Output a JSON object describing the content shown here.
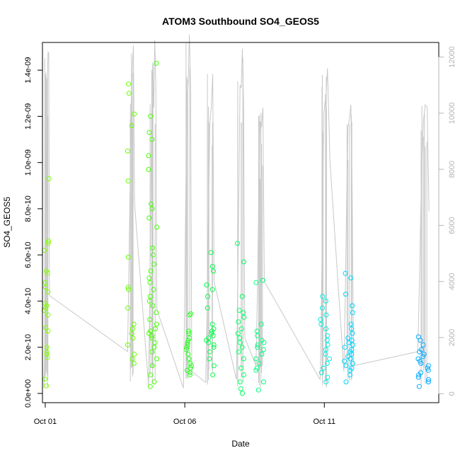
{
  "chart_data": {
    "type": "scatter",
    "title": "ATOM3 Southbound SO4_GEOS5",
    "xlabel": "Date",
    "ylabel": "SO4_GEOS5",
    "x_axis": {
      "ticks": [
        "Oct 01",
        "Oct 06",
        "Oct 11"
      ],
      "tick_values": [
        1.0,
        6.0,
        11.0
      ],
      "range": [
        0.9,
        15.1
      ]
    },
    "y_axis_left": {
      "ticks": [
        "0.0e+00",
        "2.0e-10",
        "4.0e-10",
        "6.0e-10",
        "8.0e-10",
        "1.0e-09",
        "1.2e-09",
        "1.4e-09"
      ],
      "tick_values": [
        0,
        2e-10,
        4e-10,
        6e-10,
        8e-10,
        1e-09,
        1.2e-09,
        1.4e-09
      ],
      "range": [
        -4e-11,
        1.52e-09
      ]
    },
    "y_axis_right": {
      "ticks": [
        "0",
        "2000",
        "4000",
        "6000",
        "8000",
        "10000",
        "12000"
      ],
      "tick_values": [
        0,
        2000,
        4000,
        6000,
        8000,
        10000,
        12000
      ],
      "range": [
        -320,
        12520
      ],
      "description": "altitude trace (gray line)"
    },
    "grid": false,
    "colors": {
      "trace": "#c8c8c8",
      "right_axis": "#b5b5b5",
      "palette_by_day": [
        "#80ff00",
        "#55ff00",
        "#30ff10",
        "#00ff40",
        "#00ff55",
        "#00ff70",
        "#00ff90",
        "#00eedd",
        "#00e0ff",
        "#00c8ff",
        "#00a8ff"
      ]
    },
    "flights": [
      {
        "t0": 0.95,
        "t1": 1.15,
        "color": "#80ff00",
        "values": [
          3.3e-11,
          6.2e-11,
          1.55e-10,
          1.7e-10,
          1.8e-10,
          2e-10,
          2.7e-10,
          2.85e-10,
          3.4e-10,
          3.6e-10,
          3.7e-10,
          3.8e-10,
          3.9e-10,
          4.4e-10,
          4.6e-10,
          4.8e-10,
          5.2e-10,
          5.3e-10,
          6.2e-10,
          6.5e-10,
          6.6e-10,
          9.3e-10
        ],
        "alt": [
          200,
          1500,
          3000,
          5500,
          8000,
          11000,
          12200,
          12100,
          3500
        ]
      },
      {
        "t0": 3.95,
        "t1": 4.2,
        "color": "#66ff00",
        "values": [
          1.3e-10,
          1.5e-10,
          1.7e-10,
          2.1e-10,
          2.4e-10,
          2.6e-10,
          2.8e-10,
          3e-10,
          3.7e-10,
          4.5e-10,
          4.6e-10,
          5.9e-10,
          9.2e-10,
          1.05e-09,
          1.16e-09,
          1.21e-09,
          1.3e-09,
          1.34e-09
        ],
        "alt": [
          1500,
          4000,
          7000,
          9500,
          11500,
          12400,
          6800
        ]
      },
      {
        "t0": 4.7,
        "t1": 5.0,
        "color": "#44ff00",
        "values": [
          3e-11,
          5e-11,
          8e-11,
          1.2e-10,
          1.5e-10,
          1.8e-10,
          2e-10,
          2.2e-10,
          2.4e-10,
          2.5e-10,
          2.6e-10,
          2.7e-10,
          2.8e-10,
          3e-10,
          3.2e-10,
          3.5e-10,
          3.8e-10,
          4e-10,
          4.2e-10,
          4.5e-10,
          4.8e-10,
          5e-10,
          5.3e-10,
          5.6e-10,
          6e-10,
          6.3e-10,
          7.2e-10,
          7.6e-10,
          8e-10,
          8.2e-10,
          9.7e-10,
          1.03e-09,
          1.1e-09,
          1.13e-09,
          1.2e-09,
          1.43e-09
        ],
        "alt": [
          300,
          2500,
          6000,
          10000,
          11800,
          10200,
          12600,
          11000,
          3000
        ]
      },
      {
        "t0": 5.95,
        "t1": 6.25,
        "color": "#2aff20",
        "values": [
          8e-11,
          9e-11,
          1e-10,
          1.1e-10,
          1.2e-10,
          1.3e-10,
          1.5e-10,
          1.7e-10,
          1.9e-10,
          2e-10,
          2.1e-10,
          2.2e-10,
          2.3e-10,
          2.4e-10,
          2.6e-10,
          2.7e-10,
          3.4e-10,
          3.45e-10
        ],
        "alt": [
          200,
          3000,
          7000,
          10500,
          11100,
          12800,
          11000,
          800
        ]
      },
      {
        "t0": 6.75,
        "t1": 7.05,
        "color": "#00ff45",
        "values": [
          8e-11,
          1.2e-10,
          1.5e-10,
          1.8e-10,
          2e-10,
          2.1e-10,
          2.2e-10,
          2.3e-10,
          2.4e-10,
          2.5e-10,
          2.6e-10,
          2.7e-10,
          2.8e-10,
          3e-10,
          3.7e-10,
          4.2e-10,
          4.5e-10,
          4.7e-10,
          5.3e-10,
          5.5e-10,
          6.1e-10
        ],
        "alt": [
          400,
          3000,
          6500,
          9700,
          10200,
          11400,
          4000
        ]
      },
      {
        "t0": 7.85,
        "t1": 8.15,
        "color": "#00ff60",
        "values": [
          0.0,
          2e-11,
          5e-11,
          8e-11,
          1.1e-10,
          1.5e-10,
          1.8e-10,
          2e-10,
          2.2e-10,
          2.4e-10,
          2.6e-10,
          2.8e-10,
          3.1e-10,
          3.3e-10,
          3.5e-10,
          3.6e-10,
          4.2e-10,
          5.7e-10,
          6.5e-10
        ],
        "alt": [
          500,
          3500,
          7000,
          11000,
          10900,
          12300,
          10300,
          2000
        ]
      },
      {
        "t0": 8.55,
        "t1": 8.85,
        "color": "#00ff80",
        "values": [
          1.5e-11,
          5e-11,
          1e-10,
          1.1e-10,
          1.3e-10,
          1.5e-10,
          1.7e-10,
          1.9e-10,
          2e-10,
          2.1e-10,
          2.2e-10,
          2.3e-10,
          2.5e-10,
          2.7e-10,
          3e-10,
          4.8e-10,
          4.9e-10
        ],
        "alt": [
          1000,
          3500,
          7000,
          9700,
          9500,
          10200,
          4000
        ]
      },
      {
        "t0": 10.85,
        "t1": 11.2,
        "color": "#00f0e0",
        "values": [
          5e-11,
          7e-11,
          9e-11,
          1.1e-10,
          1.3e-10,
          1.5e-10,
          1.7e-10,
          1.9e-10,
          2.1e-10,
          2.3e-10,
          2.5e-10,
          2.8e-10,
          3e-10,
          3.2e-10,
          3.4e-10,
          3.7e-10,
          4e-10,
          4.2e-10
        ],
        "alt": [
          500,
          3000,
          6500,
          10000,
          10400,
          10700,
          11600,
          10000,
          8300
        ]
      },
      {
        "t0": 11.7,
        "t1": 12.05,
        "color": "#00d4ff",
        "values": [
          5e-11,
          8e-11,
          1e-10,
          1.1e-10,
          1.2e-10,
          1.3e-10,
          1.4e-10,
          1.5e-10,
          1.6e-10,
          1.7e-10,
          1.8e-10,
          1.9e-10,
          2e-10,
          2.1e-10,
          2.2e-10,
          2.3e-10,
          2.4e-10,
          2.6e-10,
          2.8e-10,
          3e-10,
          3.5e-10,
          3.8e-10,
          4.3e-10,
          5e-10,
          5.2e-10
        ],
        "alt": [
          800,
          3500,
          7000,
          9500,
          9800,
          10300,
          7000,
          1000
        ]
      },
      {
        "t0": 14.35,
        "t1": 14.75,
        "color": "#00aaff",
        "values": [
          3e-11,
          5e-11,
          6e-11,
          7e-11,
          8e-11,
          9e-11,
          1e-10,
          1.1e-10,
          1.2e-10,
          1.3e-10,
          1.4e-10,
          1.5e-10,
          1.6e-10,
          1.7e-10,
          1.8e-10,
          1.9e-10,
          2.1e-10,
          2.3e-10,
          2.45e-10
        ],
        "alt": [
          1500,
          4500,
          8000,
          9700,
          10300,
          10200,
          6500
        ]
      }
    ]
  }
}
